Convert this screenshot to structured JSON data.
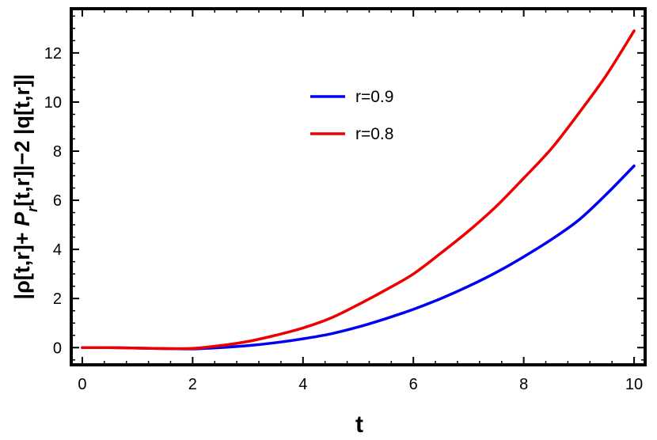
{
  "chart_data": {
    "type": "line",
    "xlabel": "t",
    "ylabel": {
      "part1": "|ρ[t,r]+ ",
      "part2": "P",
      "part3": "r",
      "part4": "[t,r]|−2 |q[t,r]|"
    },
    "xlim": [
      -0.2,
      10.2
    ],
    "ylim": [
      -0.7,
      13.8
    ],
    "x_ticks": [
      0,
      2,
      4,
      6,
      8,
      10
    ],
    "y_ticks": [
      0,
      2,
      4,
      6,
      8,
      10,
      12
    ],
    "grid": false,
    "legend_placement": "upper-middle",
    "series": [
      {
        "name": "r=0.9",
        "color": "#0000ee",
        "x": [
          0,
          0.5,
          1,
          1.5,
          2,
          2.5,
          3,
          3.5,
          4,
          4.5,
          5,
          5.5,
          6,
          6.5,
          7,
          7.5,
          8,
          8.5,
          9,
          9.5,
          10
        ],
        "y": [
          0,
          0,
          -0.02,
          -0.04,
          -0.05,
          0,
          0.08,
          0.2,
          0.36,
          0.56,
          0.84,
          1.18,
          1.56,
          2.0,
          2.5,
          3.06,
          3.7,
          4.4,
          5.2,
          6.25,
          7.4
        ]
      },
      {
        "name": "r=0.8",
        "color": "#ee0000",
        "x": [
          0,
          0.5,
          1,
          1.5,
          2,
          2.5,
          3,
          3.5,
          4,
          4.5,
          5,
          5.5,
          6,
          6.5,
          7,
          7.5,
          8,
          8.5,
          9,
          9.5,
          10
        ],
        "y": [
          0,
          0,
          -0.02,
          -0.04,
          -0.03,
          0.08,
          0.25,
          0.5,
          0.8,
          1.2,
          1.75,
          2.35,
          3.0,
          3.85,
          4.75,
          5.75,
          6.9,
          8.1,
          9.55,
          11.1,
          12.9
        ]
      }
    ]
  }
}
